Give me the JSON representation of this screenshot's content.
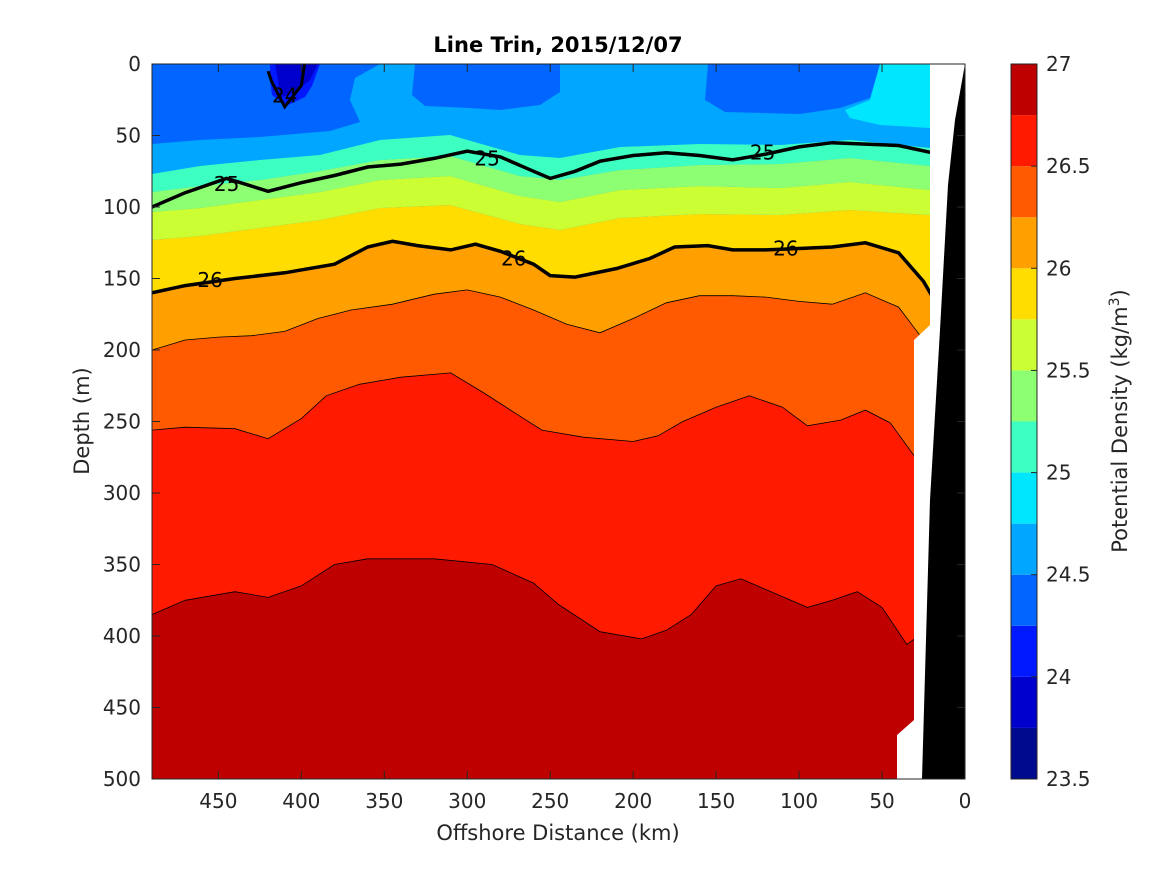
{
  "chart_data": {
    "type": "heatmap",
    "subtype": "filled-contour",
    "title": "Line Trin, 2015/12/07",
    "xlabel": "Offshore Distance (km)",
    "ylabel": "Depth (m)",
    "xlim": [
      490,
      0
    ],
    "ylim": [
      0,
      500
    ],
    "x_reversed": true,
    "y_reversed": true,
    "x_ticks": [
      450,
      400,
      350,
      300,
      250,
      200,
      150,
      100,
      50,
      0
    ],
    "y_ticks": [
      0,
      50,
      100,
      150,
      200,
      250,
      300,
      350,
      400,
      450,
      500
    ],
    "colorbar": {
      "label": "Potential Density (kg/m",
      "label_superscript": "3",
      "label_suffix": ")",
      "range": [
        23.5,
        27
      ],
      "step": 0.25,
      "ticks": [
        23.5,
        24,
        24.5,
        25,
        25.5,
        26,
        26.5,
        27
      ],
      "colors": [
        "#000a8f",
        "#0000cc",
        "#0019ff",
        "#0066ff",
        "#00a6ff",
        "#00e6ff",
        "#3dffc2",
        "#8cff73",
        "#ccff33",
        "#ffdd00",
        "#ff9f00",
        "#ff5a00",
        "#ff1a00",
        "#bf0000"
      ]
    },
    "labeled_contours": [
      {
        "level": 24,
        "label": "24",
        "depth_m": [
          [
            420,
            5
          ],
          [
            418,
            12
          ],
          [
            410,
            30
          ],
          [
            400,
            15
          ],
          [
            398,
            0
          ]
        ]
      },
      {
        "level": 25,
        "label": "25",
        "depth_m": [
          [
            490,
            100
          ],
          [
            470,
            90
          ],
          [
            445,
            80
          ],
          [
            420,
            89
          ],
          [
            400,
            83
          ],
          [
            380,
            78
          ],
          [
            360,
            72
          ],
          [
            340,
            70
          ],
          [
            320,
            66
          ],
          [
            300,
            61
          ],
          [
            280,
            65
          ],
          [
            260,
            75
          ],
          [
            250,
            80
          ],
          [
            235,
            75
          ],
          [
            220,
            68
          ],
          [
            200,
            64
          ],
          [
            180,
            62
          ],
          [
            160,
            64
          ],
          [
            140,
            67
          ],
          [
            120,
            63
          ],
          [
            100,
            58
          ],
          [
            80,
            55
          ],
          [
            60,
            56
          ],
          [
            40,
            57
          ],
          [
            20,
            62
          ]
        ]
      },
      {
        "level": 26,
        "label": "26",
        "depth_m": [
          [
            490,
            160
          ],
          [
            470,
            155
          ],
          [
            440,
            150
          ],
          [
            410,
            146
          ],
          [
            380,
            140
          ],
          [
            360,
            128
          ],
          [
            345,
            124
          ],
          [
            330,
            127
          ],
          [
            310,
            130
          ],
          [
            295,
            126
          ],
          [
            280,
            131
          ],
          [
            260,
            140
          ],
          [
            250,
            148
          ],
          [
            235,
            149
          ],
          [
            210,
            143
          ],
          [
            190,
            136
          ],
          [
            175,
            128
          ],
          [
            155,
            127
          ],
          [
            140,
            130
          ],
          [
            120,
            130
          ],
          [
            100,
            129
          ],
          [
            80,
            128
          ],
          [
            60,
            125
          ],
          [
            40,
            132
          ],
          [
            25,
            152
          ],
          [
            20,
            162
          ]
        ]
      }
    ],
    "boundaries": [
      {
        "level": 26.25,
        "depth_m": [
          [
            490,
            200
          ],
          [
            470,
            193
          ],
          [
            450,
            191
          ],
          [
            430,
            190
          ],
          [
            410,
            187
          ],
          [
            390,
            178
          ],
          [
            370,
            172
          ],
          [
            345,
            168
          ],
          [
            320,
            161
          ],
          [
            300,
            158
          ],
          [
            280,
            163
          ],
          [
            260,
            172
          ],
          [
            240,
            182
          ],
          [
            220,
            188
          ],
          [
            200,
            178
          ],
          [
            180,
            167
          ],
          [
            160,
            162
          ],
          [
            140,
            162
          ],
          [
            120,
            163
          ],
          [
            100,
            166
          ],
          [
            80,
            168
          ],
          [
            60,
            160
          ],
          [
            40,
            170
          ],
          [
            27,
            190
          ],
          [
            25,
            188
          ],
          [
            20,
            182
          ]
        ]
      },
      {
        "level": 26.5,
        "depth_m": [
          [
            490,
            256
          ],
          [
            470,
            254
          ],
          [
            440,
            255
          ],
          [
            420,
            262
          ],
          [
            400,
            248
          ],
          [
            385,
            232
          ],
          [
            365,
            224
          ],
          [
            340,
            219
          ],
          [
            310,
            216
          ],
          [
            290,
            230
          ],
          [
            270,
            245
          ],
          [
            255,
            256
          ],
          [
            230,
            261
          ],
          [
            200,
            264
          ],
          [
            185,
            260
          ],
          [
            170,
            250
          ],
          [
            150,
            240
          ],
          [
            130,
            232
          ],
          [
            110,
            240
          ],
          [
            95,
            253
          ],
          [
            75,
            249
          ],
          [
            60,
            242
          ],
          [
            45,
            251
          ],
          [
            30,
            275
          ],
          [
            28,
            285
          ]
        ]
      },
      {
        "level": 26.75,
        "depth_m": [
          [
            490,
            385
          ],
          [
            470,
            375
          ],
          [
            440,
            369
          ],
          [
            420,
            373
          ],
          [
            400,
            365
          ],
          [
            380,
            350
          ],
          [
            360,
            346
          ],
          [
            320,
            346
          ],
          [
            285,
            350
          ],
          [
            260,
            363
          ],
          [
            245,
            378
          ],
          [
            220,
            397
          ],
          [
            195,
            402
          ],
          [
            180,
            396
          ],
          [
            165,
            385
          ],
          [
            150,
            365
          ],
          [
            135,
            360
          ],
          [
            115,
            370
          ],
          [
            95,
            380
          ],
          [
            80,
            375
          ],
          [
            65,
            369
          ],
          [
            50,
            380
          ],
          [
            35,
            406
          ],
          [
            28,
            400
          ]
        ]
      }
    ]
  }
}
